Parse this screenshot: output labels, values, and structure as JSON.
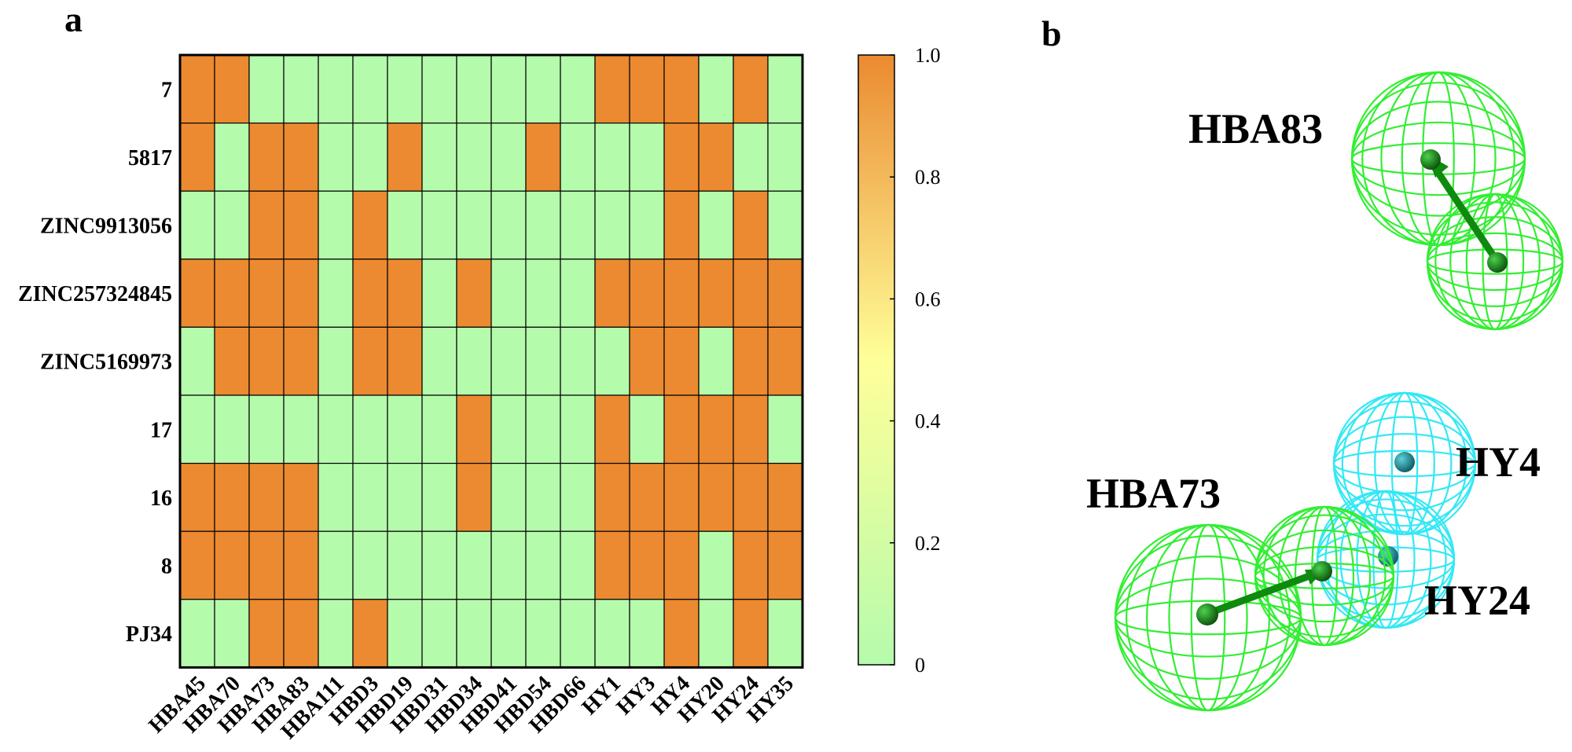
{
  "panels": {
    "a": "a",
    "b": "b"
  },
  "chart_data": {
    "type": "heatmap",
    "rows": [
      "7",
      "5817",
      "ZINC9913056",
      "ZINC257324845",
      "ZINC5169973",
      "17",
      "16",
      "8",
      "PJ34"
    ],
    "columns": [
      "HBA45",
      "HBA70",
      "HBA73",
      "HBA83",
      "HBA111",
      "HBD3",
      "HBD19",
      "HBD31",
      "HBD34",
      "HBD41",
      "HBD54",
      "HBD66",
      "HY1",
      "HY3",
      "HY4",
      "HY20",
      "HY24",
      "HY35"
    ],
    "values": [
      [
        1,
        1,
        0,
        0,
        0,
        0,
        0,
        0,
        0,
        0,
        0,
        0,
        1,
        1,
        1,
        0,
        1,
        0
      ],
      [
        1,
        0,
        1,
        1,
        0,
        0,
        1,
        0,
        0,
        0,
        1,
        0,
        0,
        0,
        1,
        1,
        0,
        0
      ],
      [
        0,
        0,
        1,
        1,
        0,
        1,
        0,
        0,
        0,
        0,
        0,
        0,
        0,
        0,
        1,
        0,
        1,
        0
      ],
      [
        1,
        1,
        1,
        1,
        0,
        1,
        1,
        0,
        1,
        0,
        0,
        0,
        1,
        1,
        1,
        1,
        1,
        1
      ],
      [
        0,
        1,
        1,
        1,
        0,
        1,
        1,
        0,
        0,
        0,
        0,
        0,
        0,
        1,
        1,
        0,
        1,
        1
      ],
      [
        0,
        0,
        0,
        0,
        0,
        0,
        0,
        0,
        1,
        0,
        0,
        0,
        1,
        0,
        1,
        1,
        1,
        0
      ],
      [
        1,
        1,
        1,
        1,
        0,
        0,
        0,
        0,
        1,
        0,
        0,
        0,
        1,
        1,
        1,
        1,
        1,
        1
      ],
      [
        1,
        1,
        1,
        1,
        0,
        0,
        0,
        0,
        0,
        0,
        0,
        0,
        1,
        1,
        1,
        0,
        1,
        1
      ],
      [
        0,
        0,
        1,
        1,
        0,
        1,
        0,
        0,
        0,
        0,
        0,
        0,
        0,
        0,
        1,
        0,
        1,
        0
      ]
    ],
    "colorbar": {
      "min": 0,
      "max": 1,
      "ticks": [
        "0",
        "0.2",
        "0.4",
        "0.6",
        "0.8",
        "1.0"
      ],
      "colors": {
        "low": "#b5fbac",
        "mid": "#ffff99",
        "high": "#eb8a31"
      }
    }
  },
  "pharmacophore": {
    "features": [
      {
        "label": "HBA83",
        "type": "hydrogen-bond-acceptor",
        "color": "#33ee33"
      },
      {
        "label": "HBA73",
        "type": "hydrogen-bond-acceptor",
        "color": "#33ee33"
      },
      {
        "label": "HY4",
        "type": "hydrophobic",
        "color": "#33e8f5"
      },
      {
        "label": "HY24",
        "type": "hydrophobic",
        "color": "#33e8f5"
      }
    ]
  }
}
